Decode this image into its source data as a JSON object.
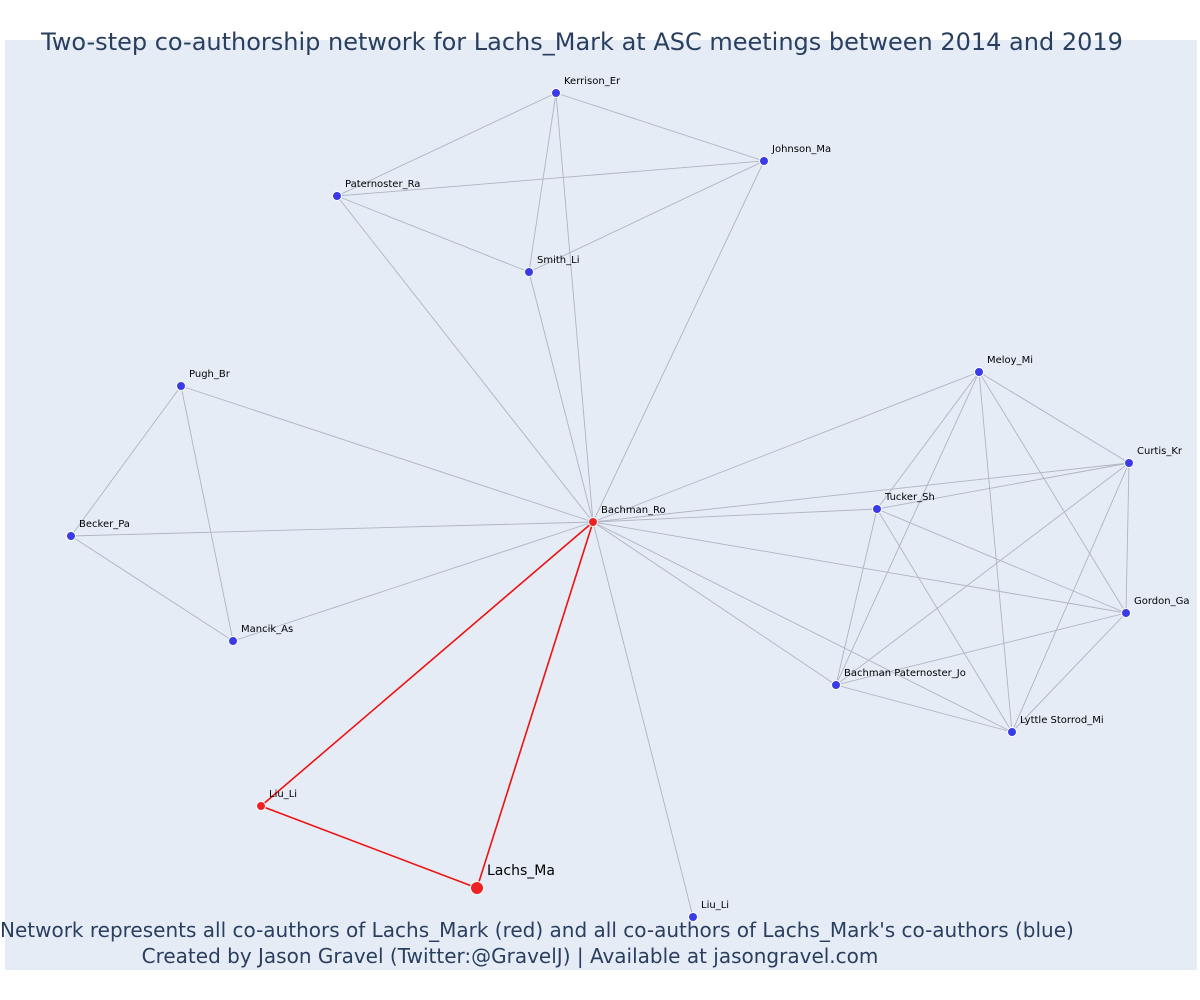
{
  "title": "Two-step co-authorship network for Lachs_Mark at ASC meetings between 2014 and 2019",
  "caption_lines": [
    "Network represents all co-authors of Lachs_Mark (red) and all co-authors of Lachs_Mark's co-authors (blue)",
    "Created by Jason Gravel (Twitter:@GravelJ) | Available at jasongravel.com"
  ],
  "colors": {
    "background": "#e5ecf6",
    "edge_default": "#b0b4c2",
    "edge_highlight": "#ee1111",
    "node_red": "#ee2222",
    "node_blue": "#3a3ae6",
    "title_text": "#2a3f5f"
  },
  "nodes": [
    {
      "id": "lachs",
      "label": "Lachs_Ma",
      "group": "focal"
    },
    {
      "id": "bachman_ro",
      "label": "Bachman_Ro",
      "group": "red"
    },
    {
      "id": "liu_red",
      "label": "Liu_Li",
      "group": "red"
    },
    {
      "id": "kerrison",
      "label": "Kerrison_Er",
      "group": "blue"
    },
    {
      "id": "johnson",
      "label": "Johnson_Ma",
      "group": "blue"
    },
    {
      "id": "paternoster",
      "label": "Paternoster_Ra",
      "group": "blue"
    },
    {
      "id": "smith",
      "label": "Smith_Li",
      "group": "blue"
    },
    {
      "id": "pugh",
      "label": "Pugh_Br",
      "group": "blue"
    },
    {
      "id": "becker",
      "label": "Becker_Pa",
      "group": "blue"
    },
    {
      "id": "mancik",
      "label": "Mancik_As",
      "group": "blue"
    },
    {
      "id": "meloy",
      "label": "Meloy_Mi",
      "group": "blue"
    },
    {
      "id": "curtis",
      "label": "Curtis_Kr",
      "group": "blue"
    },
    {
      "id": "tucker",
      "label": "Tucker_Sh",
      "group": "blue"
    },
    {
      "id": "gordon",
      "label": "Gordon_Ga",
      "group": "blue"
    },
    {
      "id": "bachman_pat",
      "label": "Bachman Paternoster_Jo",
      "group": "blue"
    },
    {
      "id": "lyttle",
      "label": "Lyttle Storrod_Mi",
      "group": "blue"
    },
    {
      "id": "liu_blue",
      "label": "Liu_Li",
      "group": "blue"
    }
  ],
  "edges": [
    [
      "lachs",
      "bachman_ro",
      "highlight"
    ],
    [
      "lachs",
      "liu_red",
      "highlight"
    ],
    [
      "liu_red",
      "bachman_ro",
      "highlight"
    ],
    [
      "kerrison",
      "johnson"
    ],
    [
      "kerrison",
      "paternoster"
    ],
    [
      "kerrison",
      "smith"
    ],
    [
      "kerrison",
      "bachman_ro"
    ],
    [
      "johnson",
      "paternoster"
    ],
    [
      "johnson",
      "smith"
    ],
    [
      "johnson",
      "bachman_ro"
    ],
    [
      "paternoster",
      "smith"
    ],
    [
      "paternoster",
      "bachman_ro"
    ],
    [
      "smith",
      "bachman_ro"
    ],
    [
      "pugh",
      "becker"
    ],
    [
      "pugh",
      "mancik"
    ],
    [
      "pugh",
      "bachman_ro"
    ],
    [
      "becker",
      "mancik"
    ],
    [
      "becker",
      "bachman_ro"
    ],
    [
      "mancik",
      "bachman_ro"
    ],
    [
      "bachman_ro",
      "liu_blue"
    ],
    [
      "bachman_ro",
      "meloy"
    ],
    [
      "bachman_ro",
      "curtis"
    ],
    [
      "bachman_ro",
      "tucker"
    ],
    [
      "bachman_ro",
      "gordon"
    ],
    [
      "bachman_ro",
      "bachman_pat"
    ],
    [
      "bachman_ro",
      "lyttle"
    ],
    [
      "meloy",
      "tucker"
    ],
    [
      "meloy",
      "curtis"
    ],
    [
      "meloy",
      "gordon"
    ],
    [
      "meloy",
      "bachman_pat"
    ],
    [
      "meloy",
      "lyttle"
    ],
    [
      "curtis",
      "tucker"
    ],
    [
      "curtis",
      "gordon"
    ],
    [
      "curtis",
      "bachman_pat"
    ],
    [
      "curtis",
      "lyttle"
    ],
    [
      "tucker",
      "gordon"
    ],
    [
      "tucker",
      "bachman_pat"
    ],
    [
      "tucker",
      "lyttle"
    ],
    [
      "gordon",
      "bachman_pat"
    ],
    [
      "gordon",
      "lyttle"
    ],
    [
      "bachman_pat",
      "lyttle"
    ]
  ]
}
